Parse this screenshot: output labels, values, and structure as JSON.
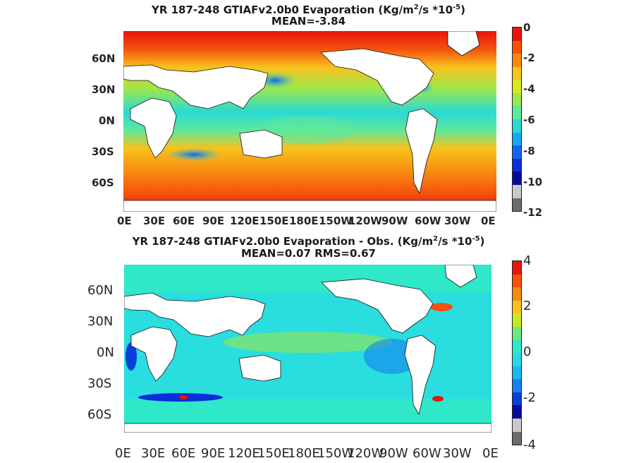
{
  "panels": [
    {
      "title_prefix": "YR 187-248 GTIAFv2.0b0  Evaporation (Kg/m",
      "title_sup1": "2",
      "title_mid": "/s *10",
      "title_sup2": "-5",
      "title_suffix": ")",
      "subtitle": "MEAN=-3.84",
      "lat_labels": [
        "60N",
        "30N",
        "0N",
        "30S",
        "60S"
      ],
      "lon_labels": [
        "0E",
        "30E",
        "60E",
        "90E",
        "120E",
        "150E",
        "180E",
        "150W",
        "120W",
        "90W",
        "60W",
        "30W",
        "0E"
      ],
      "colorbar_labels": [
        "0",
        "-2",
        "-4",
        "-6",
        "-8",
        "-10",
        "-12"
      ],
      "colorbar_colors": [
        "#e8150c",
        "#f4520d",
        "#f88a12",
        "#f9c21b",
        "#d9e81f",
        "#9be84d",
        "#5fe89a",
        "#2ad9d6",
        "#19a8f2",
        "#1065f0",
        "#0a2ed8",
        "#0a0a9a",
        "#c8c8c8",
        "#6b6b6b"
      ]
    },
    {
      "title_prefix": "YR 187-248 GTIAFv2.0b0 Evaporation - Obs. (Kg/m",
      "title_sup1": "2",
      "title_mid": "/s *10",
      "title_sup2": "-5",
      "title_suffix": ")",
      "subtitle": "MEAN=0.07   RMS=0.67",
      "lat_labels": [
        "60N",
        "30N",
        "0N",
        "30S",
        "60S"
      ],
      "lon_labels": [
        "0E",
        "30E",
        "60E",
        "90E",
        "120E",
        "150E",
        "180E",
        "150W",
        "120W",
        "90W",
        "60W",
        "30W",
        "0E"
      ],
      "colorbar_labels": [
        "4",
        "2",
        "0",
        "-2",
        "-4"
      ],
      "colorbar_colors": [
        "#e8150c",
        "#f4520d",
        "#f88a12",
        "#f9c21b",
        "#c8e81f",
        "#6ee87a",
        "#2ee8c8",
        "#2ad9e8",
        "#19b8f2",
        "#1680f0",
        "#0a3ed8",
        "#0a0a9a",
        "#c8c8c8",
        "#6b6b6b"
      ]
    }
  ]
}
